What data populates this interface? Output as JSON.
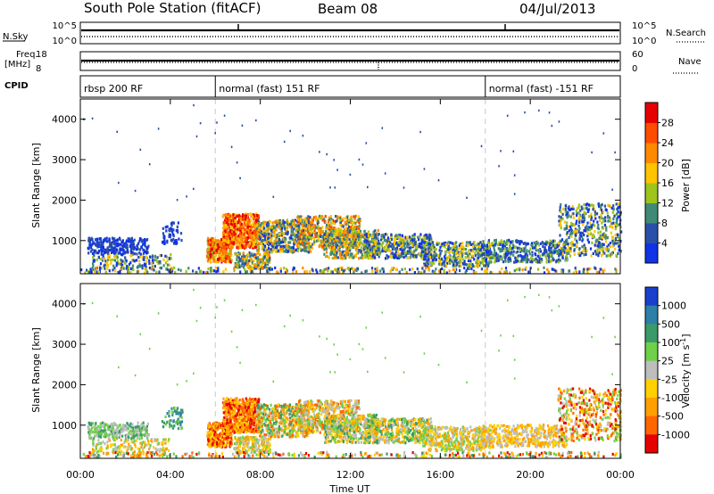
{
  "header": {
    "station": "South Pole Station (fitACF)",
    "beam": "Beam 08",
    "date": "04/Jul/2013"
  },
  "strip": {
    "nsky_label": "N.Sky",
    "nsky_hi": "10^5",
    "nsky_lo": "10^0",
    "nsearch_label": "N.Search",
    "nsearch_hi": "10^5",
    "nsearch_lo": "10^0",
    "freq_label": "Freq.",
    "freq_unit": "[MHz]",
    "freq_hi": "18",
    "freq_lo": "8",
    "nave_hi": "60",
    "nave_lo": "0",
    "nave_label": "Nave",
    "cpid_label": "CPID"
  },
  "cpid_segments": [
    {
      "start_hour": 0,
      "label": "rbsp 200 RF"
    },
    {
      "start_hour": 6,
      "label": "normal (fast) 151 RF"
    },
    {
      "start_hour": 18,
      "label": "normal (fast) -151 RF"
    }
  ],
  "chart_data": [
    {
      "type": "heatmap",
      "xlabel": "Time UT",
      "ylabel": "Slant Range [km]",
      "x_ticks": [
        "00:00",
        "04:00",
        "08:00",
        "12:00",
        "16:00",
        "20:00",
        "00:00"
      ],
      "x_range_hours": [
        0,
        24
      ],
      "y_ticks": [
        1000,
        2000,
        3000,
        4000
      ],
      "ylim": [
        180,
        4500
      ],
      "colorbar_label": "Power [dB]",
      "colorbar_ticks": [
        "4",
        "8",
        "12",
        "16",
        "20",
        "24",
        "28"
      ],
      "colorbar_colors": [
        "#1033e6",
        "#2a4fa8",
        "#3f8a76",
        "#9ec41c",
        "#ffc400",
        "#ff8a00",
        "#ff4d00",
        "#e60000"
      ],
      "mode_change_hours": [
        6,
        18
      ]
    },
    {
      "type": "heatmap",
      "xlabel": "Time UT",
      "ylabel": "Slant Range [km]",
      "x_ticks": [
        "00:00",
        "04:00",
        "08:00",
        "12:00",
        "16:00",
        "20:00",
        "00:00"
      ],
      "x_range_hours": [
        0,
        24
      ],
      "y_ticks": [
        1000,
        2000,
        3000,
        4000
      ],
      "ylim": [
        180,
        4500
      ],
      "colorbar_label": "Velocity [m s^-1]",
      "colorbar_ticks": [
        "1000",
        "500",
        "100",
        "25",
        "-25",
        "-100",
        "-500",
        "-1000"
      ],
      "colorbar_colors": [
        "#1a3fcc",
        "#2c7fa6",
        "#3a9a6a",
        "#6fd04a",
        "#bdbdbd",
        "#ffd000",
        "#ffa000",
        "#ff6600",
        "#e60000"
      ],
      "mode_change_hours": [
        6,
        18
      ]
    }
  ]
}
